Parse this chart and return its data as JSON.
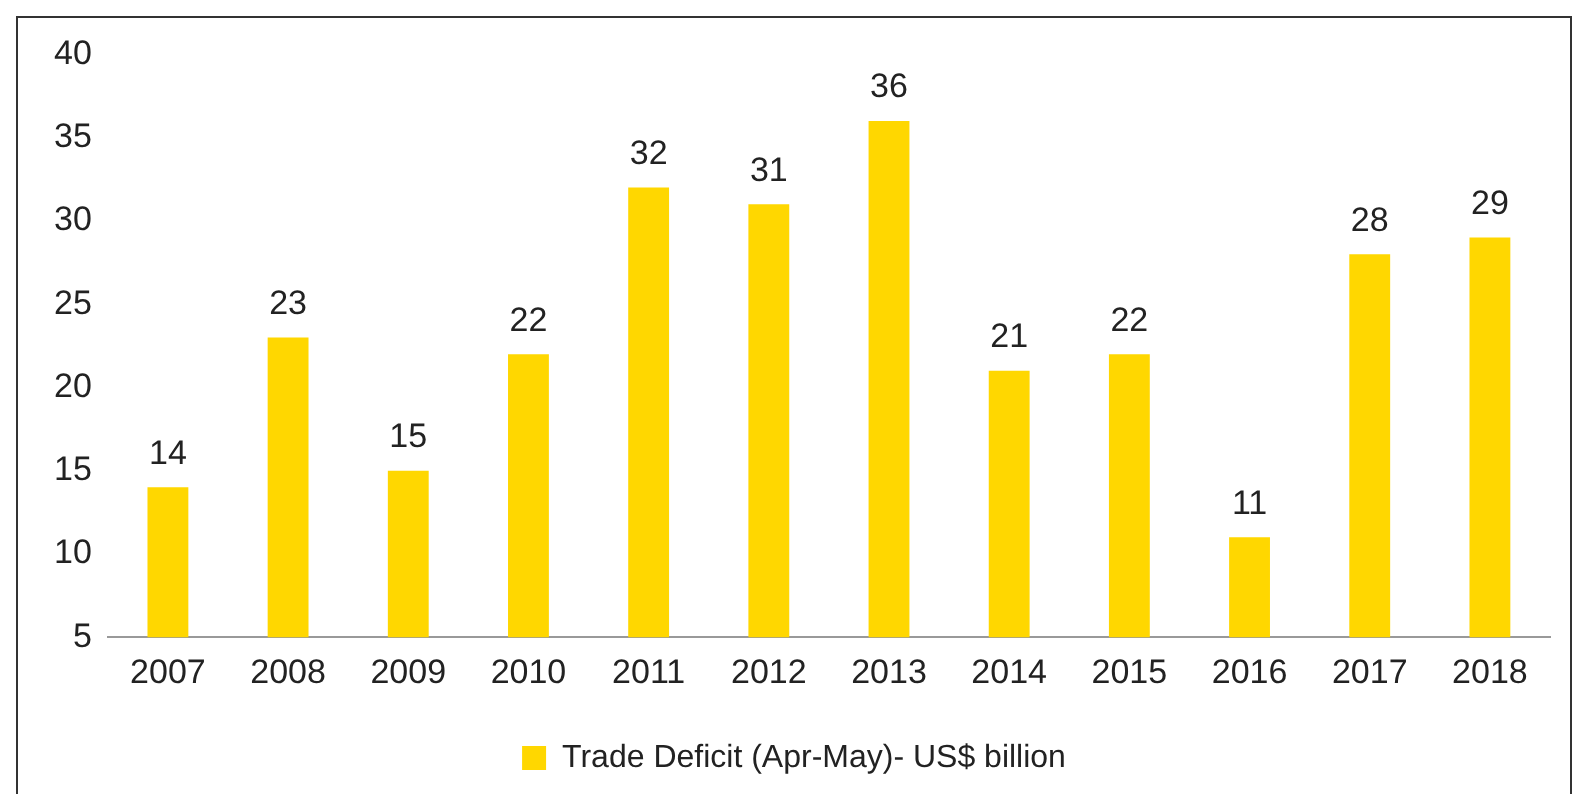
{
  "chart_data": {
    "type": "bar",
    "categories": [
      "2007",
      "2008",
      "2009",
      "2010",
      "2011",
      "2012",
      "2013",
      "2014",
      "2015",
      "2016",
      "2017",
      "2018"
    ],
    "series": [
      {
        "name": "Trade Deficit (Apr-May)- US$ billion",
        "color": "#ffd700",
        "values": [
          14,
          23,
          15,
          22,
          32,
          31,
          36,
          21,
          22,
          11,
          28,
          29
        ]
      }
    ],
    "ylim": [
      5,
      40
    ],
    "yticks": [
      5,
      10,
      15,
      20,
      25,
      30,
      35,
      40
    ],
    "grid": false,
    "legend": "bottom",
    "data_labels": true
  }
}
